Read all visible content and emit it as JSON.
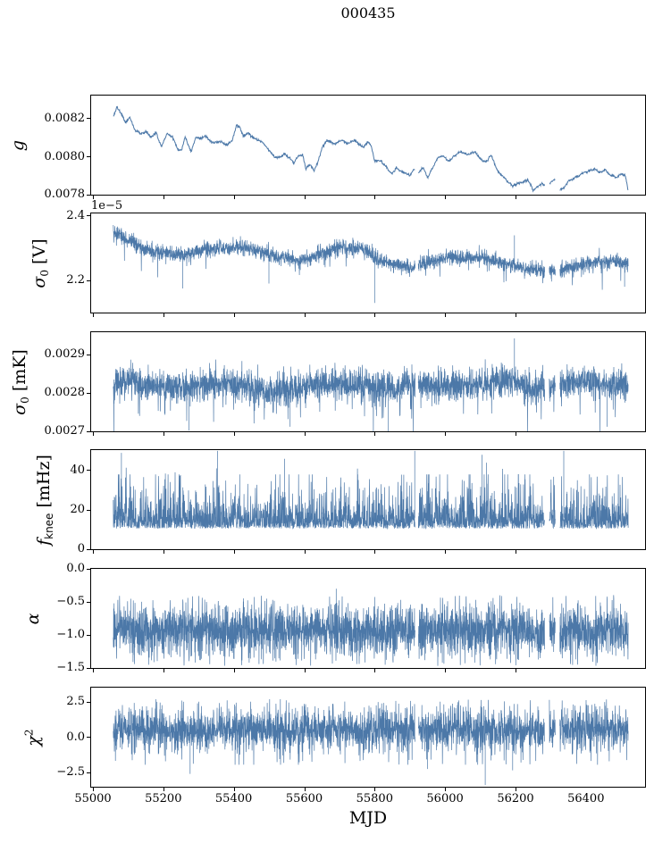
{
  "figure": {
    "title": "000435",
    "xlabel": "MJD",
    "background": "#ffffff",
    "line_color": "#4c78a8",
    "axis_color": "#000000",
    "seed": 435
  },
  "x_axis": {
    "label": "MJD",
    "xlim": [
      54995,
      56568
    ],
    "xticks": [
      55000,
      55200,
      55400,
      55600,
      55800,
      56000,
      56200,
      56400
    ],
    "xtick_labels": [
      "55000",
      "55200",
      "55400",
      "55600",
      "55800",
      "56000",
      "56200",
      "56400"
    ],
    "data_range": [
      55058,
      56520
    ],
    "gaps": [
      [
        55915,
        55924
      ],
      [
        56283,
        56296
      ],
      [
        56313,
        56326
      ]
    ]
  },
  "chart_data": [
    {
      "type": "line",
      "name": "gain",
      "ylabel_text": "g",
      "ylabel_segments": [
        {
          "t": "g",
          "s": "it"
        }
      ],
      "ylim": [
        0.0078,
        0.008322
      ],
      "yticks": [
        0.0078,
        0.008,
        0.0082
      ],
      "ytick_labels": [
        "0.0078",
        "0.0080",
        "0.0082"
      ],
      "model": "smooth",
      "points": 1500,
      "linewidth": 1.0,
      "noise": {
        "walk": 1.5e-06,
        "decay": 0.97,
        "jitter": 2.8e-06
      },
      "anchors": {
        "x": [
          55058,
          55068,
          55080,
          55092,
          55105,
          55120,
          55135,
          55150,
          55165,
          55180,
          55195,
          55210,
          55225,
          55240,
          55252,
          55262,
          55270,
          55280,
          55292,
          55305,
          55320,
          55335,
          55350,
          55365,
          55380,
          55395,
          55408,
          55418,
          55428,
          55440,
          55455,
          55470,
          55485,
          55500,
          55515,
          55530,
          55545,
          55558,
          55570,
          55582,
          55595,
          55605,
          55615,
          55628,
          55640,
          55652,
          55665,
          55680,
          55695,
          55710,
          55725,
          55740,
          55755,
          55768,
          55780,
          55790,
          55800,
          55812,
          55825,
          55838,
          55850,
          55862,
          55875,
          55888,
          55900,
          55912,
          55925,
          55938,
          55950,
          55965,
          55980,
          55995,
          56010,
          56025,
          56040,
          56055,
          56070,
          56085,
          56100,
          56115,
          56130,
          56145,
          56160,
          56175,
          56190,
          56205,
          56220,
          56235,
          56250,
          56262,
          56275,
          56288,
          56300,
          56312,
          56325,
          56338,
          56350,
          56365,
          56380,
          56395,
          56410,
          56425,
          56440,
          56455,
          56470,
          56485,
          56500,
          56512,
          56520
        ],
        "y": [
          0.00821,
          0.00826,
          0.00823,
          0.00818,
          0.0082,
          0.00814,
          0.00812,
          0.00813,
          0.0081,
          0.00813,
          0.00806,
          0.00812,
          0.00811,
          0.00804,
          0.00803,
          0.0081,
          0.00806,
          0.00802,
          0.0081,
          0.00809,
          0.0081,
          0.00808,
          0.00808,
          0.00809,
          0.00807,
          0.00809,
          0.00818,
          0.00816,
          0.00811,
          0.00813,
          0.0081,
          0.00809,
          0.00807,
          0.00804,
          0.00801,
          0.00801,
          0.00802,
          0.00799,
          0.00796,
          0.008,
          0.00801,
          0.00793,
          0.00795,
          0.00792,
          0.00797,
          0.00805,
          0.00808,
          0.00807,
          0.00807,
          0.00808,
          0.00807,
          0.00808,
          0.00806,
          0.00804,
          0.00808,
          0.00806,
          0.00797,
          0.00798,
          0.00795,
          0.00792,
          0.0079,
          0.00794,
          0.00792,
          0.00791,
          0.0079,
          0.00793,
          0.00791,
          0.00794,
          0.00789,
          0.00794,
          0.00799,
          0.008,
          0.00797,
          0.008,
          0.00802,
          0.00801,
          0.00802,
          0.00803,
          0.00799,
          0.00797,
          0.00801,
          0.00794,
          0.0079,
          0.00787,
          0.00785,
          0.00786,
          0.00786,
          0.00788,
          0.00783,
          0.00784,
          0.00786,
          0.00784,
          0.00786,
          0.00787,
          0.00782,
          0.00783,
          0.00786,
          0.00788,
          0.0079,
          0.00792,
          0.00793,
          0.00794,
          0.00792,
          0.00793,
          0.00791,
          0.00789,
          0.00791,
          0.0079,
          0.00782
        ]
      },
      "events": []
    },
    {
      "type": "line",
      "name": "sigma0-volts",
      "ylabel_text": "σ0 [V]",
      "ylabel_segments": [
        {
          "t": "σ",
          "s": "it"
        },
        {
          "t": "0",
          "s": "sub"
        },
        {
          "t": " [V]",
          "s": "r"
        }
      ],
      "offset_text": "1e−5",
      "unit_scale": "1e-5",
      "ylim": [
        2.1,
        2.408
      ],
      "yticks": [
        2.2,
        2.4
      ],
      "ytick_labels": [
        "2.2",
        "2.4"
      ],
      "model": "band",
      "points": 3200,
      "linewidth": 0.7,
      "noise": {
        "sigma": 0.01,
        "extra": 0.018,
        "extra_p": 0.35,
        "spike_down_p": 0.012,
        "spike_down": 0.045,
        "spike_up_p": 0.004,
        "spike_up": 0.03
      },
      "anchors": {
        "x": [
          55058,
          55080,
          55100,
          55120,
          55140,
          55160,
          55180,
          55200,
          55220,
          55240,
          55260,
          55280,
          55300,
          55320,
          55340,
          55360,
          55380,
          55400,
          55420,
          55440,
          55460,
          55480,
          55500,
          55520,
          55540,
          55560,
          55580,
          55600,
          55620,
          55640,
          55660,
          55680,
          55700,
          55720,
          55740,
          55760,
          55780,
          55800,
          55820,
          55840,
          55860,
          55880,
          55900,
          55920,
          55940,
          55960,
          55980,
          56000,
          56020,
          56040,
          56060,
          56080,
          56100,
          56120,
          56140,
          56160,
          56180,
          56200,
          56220,
          56240,
          56260,
          56280,
          56300,
          56320,
          56340,
          56360,
          56380,
          56400,
          56420,
          56440,
          56460,
          56480,
          56500,
          56515
        ],
        "y": [
          2.35,
          2.34,
          2.325,
          2.315,
          2.3,
          2.295,
          2.29,
          2.287,
          2.28,
          2.278,
          2.28,
          2.282,
          2.29,
          2.296,
          2.298,
          2.298,
          2.3,
          2.302,
          2.308,
          2.3,
          2.293,
          2.288,
          2.28,
          2.273,
          2.27,
          2.268,
          2.262,
          2.264,
          2.268,
          2.278,
          2.29,
          2.296,
          2.3,
          2.302,
          2.3,
          2.298,
          2.292,
          2.27,
          2.262,
          2.252,
          2.245,
          2.242,
          2.238,
          2.245,
          2.252,
          2.258,
          2.264,
          2.27,
          2.272,
          2.27,
          2.268,
          2.27,
          2.272,
          2.268,
          2.262,
          2.256,
          2.25,
          2.245,
          2.24,
          2.238,
          2.232,
          2.225,
          2.222,
          2.228,
          2.235,
          2.242,
          2.248,
          2.252,
          2.256,
          2.258,
          2.26,
          2.258,
          2.256,
          2.252
        ]
      },
      "events": [
        [
          55255,
          2.175
        ],
        [
          55500,
          2.19
        ],
        [
          55800,
          2.13
        ],
        [
          56197,
          2.34
        ],
        [
          56510,
          2.18
        ]
      ]
    },
    {
      "type": "line",
      "name": "sigma0-mk",
      "ylabel_text": "σ0 [mK]",
      "ylabel_segments": [
        {
          "t": "σ",
          "s": "it"
        },
        {
          "t": "0",
          "s": "sub"
        },
        {
          "t": " [mK]",
          "s": "r"
        }
      ],
      "ylim": [
        0.0027,
        0.002958
      ],
      "yticks": [
        0.0027,
        0.0028,
        0.0029
      ],
      "ytick_labels": [
        "0.0027",
        "0.0028",
        "0.0029"
      ],
      "model": "band",
      "points": 3200,
      "linewidth": 0.7,
      "noise": {
        "sigma": 1.8e-05,
        "extra": 3e-05,
        "extra_p": 0.3,
        "spike_down_p": 0.02,
        "spike_down": 7e-05,
        "spike_up_p": 0.008,
        "spike_up": 5e-05
      },
      "anchors": {
        "x": [
          55058,
          55100,
          55140,
          55180,
          55220,
          55260,
          55300,
          55340,
          55380,
          55420,
          55460,
          55500,
          55540,
          55580,
          55620,
          55660,
          55700,
          55740,
          55780,
          55820,
          55860,
          55900,
          55940,
          55980,
          56020,
          56060,
          56100,
          56140,
          56180,
          56220,
          56260,
          56300,
          56340,
          56380,
          56420,
          56460,
          56500,
          56515
        ],
        "y": [
          0.00282,
          0.002835,
          0.002822,
          0.00282,
          0.002818,
          0.002812,
          0.00282,
          0.002825,
          0.002822,
          0.002818,
          0.002812,
          0.002805,
          0.00281,
          0.002812,
          0.002818,
          0.00282,
          0.00282,
          0.002818,
          0.00282,
          0.002812,
          0.00281,
          0.002818,
          0.00282,
          0.002818,
          0.00282,
          0.002818,
          0.002822,
          0.00283,
          0.002832,
          0.00282,
          0.00281,
          0.002818,
          0.002825,
          0.002832,
          0.002828,
          0.00282,
          0.002822,
          0.00282
        ]
      },
      "events": [
        [
          55273,
          0.002702
        ],
        [
          55560,
          0.002712
        ],
        [
          55839,
          0.002668
        ],
        [
          56197,
          0.002942
        ],
        [
          56460,
          0.002712
        ]
      ]
    },
    {
      "type": "line",
      "name": "fknee",
      "ylabel_text": "fknee [mHz]",
      "ylabel_segments": [
        {
          "t": "f",
          "s": "it"
        },
        {
          "t": "knee",
          "s": "subsans"
        },
        {
          "t": " [mHz]",
          "s": "r"
        }
      ],
      "ylim": [
        0,
        50.4
      ],
      "yticks": [
        0,
        20,
        40
      ],
      "ytick_labels": [
        "0",
        "20",
        "40"
      ],
      "model": "floor",
      "points": 3000,
      "linewidth": 0.7,
      "noise": {
        "floor": 10.5,
        "tail": 6.0,
        "cap": 38,
        "mid_spike_p": 0.006,
        "mid_lo": 30,
        "mid_hi": 42
      },
      "anchors": {
        "x": [
          55058,
          56520
        ],
        "y": [
          16,
          16
        ]
      },
      "events": [
        [
          55081,
          49
        ],
        [
          55354,
          50
        ],
        [
          55544,
          46
        ],
        [
          55914,
          50
        ],
        [
          56105,
          48
        ],
        [
          56118,
          44
        ],
        [
          56337,
          50
        ]
      ]
    },
    {
      "type": "line",
      "name": "alpha",
      "ylabel_text": "α",
      "ylabel_segments": [
        {
          "t": "α",
          "s": "it"
        }
      ],
      "ylim": [
        -1.5,
        0.0
      ],
      "yticks": [
        -1.5,
        -1.0,
        -0.5,
        0.0
      ],
      "ytick_labels": [
        "−1.5",
        "−1.0",
        "−0.5",
        "0.0"
      ],
      "model": "gauss",
      "points": 3400,
      "linewidth": 0.7,
      "noise": {
        "mean": -0.92,
        "sigma": 0.16,
        "uni_p": 0.2,
        "uni_lo": -1.32,
        "uni_hi": -0.56,
        "lo_p": 0.035,
        "lo_base": -1.3,
        "lo_span": -0.17,
        "hi_p": 0.02,
        "hi_base": -0.4,
        "hi_span": -0.16,
        "clamp_lo": -1.48,
        "clamp_hi": -0.33
      },
      "anchors": {
        "x": [
          55058,
          56520
        ],
        "y": [
          -0.92,
          -0.92
        ]
      },
      "events": [
        [
          55691,
          -0.3
        ],
        [
          56460,
          -0.42
        ]
      ]
    },
    {
      "type": "line",
      "name": "chi2",
      "ylabel_text": "χ2",
      "ylabel_segments": [
        {
          "t": "χ",
          "s": "it"
        },
        {
          "t": "2",
          "s": "sup"
        }
      ],
      "ylim": [
        -3.51,
        3.51
      ],
      "yticks": [
        -2.5,
        0.0,
        2.5
      ],
      "ytick_labels": [
        "−2.5",
        "0.0",
        "2.5"
      ],
      "model": "gauss",
      "points": 3400,
      "linewidth": 0.7,
      "noise": {
        "mean": 0.5,
        "sigma": 0.62,
        "uni_p": 0.15,
        "uni_lo": -1.25,
        "uni_hi": 2.35,
        "lo_p": 0.012,
        "lo_base": -1.55,
        "lo_span": -0.55,
        "hi_p": 0.012,
        "hi_base": 2.35,
        "hi_span": 0.35,
        "clamp_lo": -1.95,
        "clamp_hi": 2.78
      },
      "anchors": {
        "x": [
          55058,
          56520
        ],
        "y": [
          0.5,
          0.5
        ]
      },
      "events": [
        [
          55276,
          -2.6
        ],
        [
          55950,
          -2.25
        ],
        [
          56114,
          -3.38
        ],
        [
          56192,
          -2.35
        ]
      ]
    }
  ]
}
